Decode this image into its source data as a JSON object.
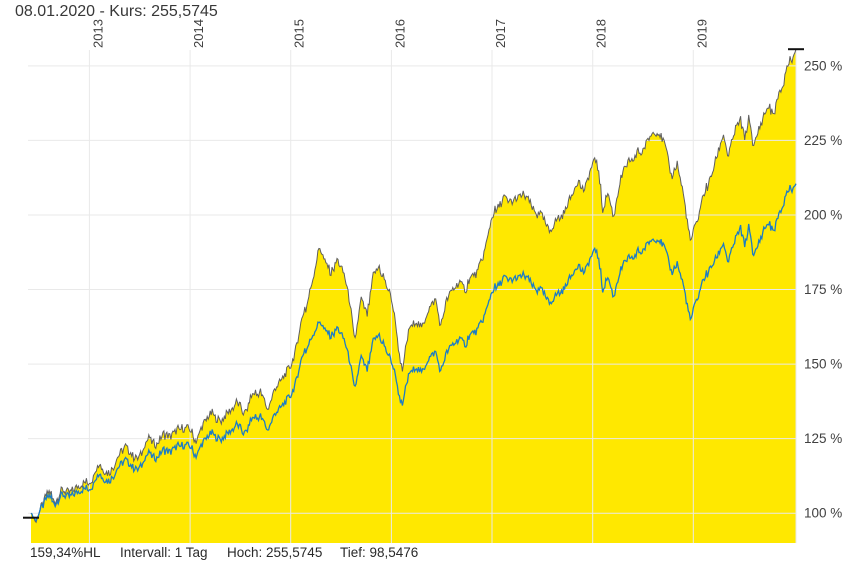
{
  "header": {
    "title": "08.01.2020  - Kurs: 255,5745"
  },
  "footer": {
    "change_label": "159,34%HL",
    "interval_label": "Intervall: 1 Tag",
    "high_label": "Hoch: 255,5745",
    "low_label": "Tief: 98,5476"
  },
  "colors": {
    "area_fill": "#ffe800",
    "area_outline": "#5f5f5f",
    "benchmark_line": "#1d7cc4",
    "grid": "#e9e9e9",
    "axis_text": "#404040",
    "tick_marker": "#111111"
  },
  "chart_data": {
    "type": "area",
    "title": "08.01.2020  - Kurs: 255,5745",
    "xlabel": "",
    "ylabel": "%",
    "x_tick_labels": [
      "2013",
      "2014",
      "2015",
      "2016",
      "2017",
      "2018",
      "2019"
    ],
    "x_tick_years": [
      2013,
      2014,
      2015,
      2016,
      2017,
      2018,
      2019
    ],
    "y_tick_labels": [
      "100 %",
      "125 %",
      "150 %",
      "175 %",
      "200 %",
      "225 %",
      "250 %"
    ],
    "y_tick_values": [
      100,
      125,
      150,
      175,
      200,
      225,
      250
    ],
    "xlim": [
      2012.39,
      2020.02
    ],
    "ylim": [
      90,
      258
    ],
    "grid": true,
    "legend": "none",
    "interval": "1 Tag",
    "last_price_pct": 255.5745,
    "high_pct": 255.5745,
    "low_pct": 98.5476,
    "start_marker": {
      "year": 2012.42,
      "value": 98.5
    },
    "end_marker": {
      "year": 2020.02,
      "value": 255.6
    },
    "noise": {
      "fund": 1.4,
      "benchmark": 1.2
    },
    "series": [
      {
        "name": "fund",
        "style": "area_with_outline",
        "points": [
          [
            2012.42,
            100
          ],
          [
            2012.47,
            98.5
          ],
          [
            2012.53,
            103
          ],
          [
            2012.6,
            106
          ],
          [
            2012.66,
            104.5
          ],
          [
            2012.73,
            108
          ],
          [
            2012.8,
            106.5
          ],
          [
            2012.88,
            109
          ],
          [
            2012.96,
            110.5
          ],
          [
            2013.04,
            113
          ],
          [
            2013.12,
            116
          ],
          [
            2013.2,
            114
          ],
          [
            2013.28,
            118
          ],
          [
            2013.36,
            122
          ],
          [
            2013.44,
            117.5
          ],
          [
            2013.52,
            121
          ],
          [
            2013.6,
            124.5
          ],
          [
            2013.68,
            123
          ],
          [
            2013.76,
            127
          ],
          [
            2013.84,
            125.5
          ],
          [
            2013.92,
            129.5
          ],
          [
            2014.0,
            128
          ],
          [
            2014.06,
            125.5
          ],
          [
            2014.14,
            130.5
          ],
          [
            2014.22,
            133
          ],
          [
            2014.3,
            131.5
          ],
          [
            2014.38,
            135
          ],
          [
            2014.46,
            137.5
          ],
          [
            2014.54,
            134.5
          ],
          [
            2014.62,
            139
          ],
          [
            2014.7,
            141.5
          ],
          [
            2014.77,
            134
          ],
          [
            2014.84,
            142
          ],
          [
            2014.92,
            146
          ],
          [
            2015.0,
            150
          ],
          [
            2015.07,
            158
          ],
          [
            2015.15,
            169
          ],
          [
            2015.22,
            180
          ],
          [
            2015.28,
            190
          ],
          [
            2015.34,
            184
          ],
          [
            2015.4,
            179
          ],
          [
            2015.46,
            186
          ],
          [
            2015.53,
            181
          ],
          [
            2015.59,
            172
          ],
          [
            2015.64,
            157
          ],
          [
            2015.7,
            171
          ],
          [
            2015.76,
            166
          ],
          [
            2015.82,
            180
          ],
          [
            2015.88,
            184
          ],
          [
            2015.94,
            176
          ],
          [
            2016.0,
            171
          ],
          [
            2016.06,
            159
          ],
          [
            2016.11,
            148
          ],
          [
            2016.18,
            161
          ],
          [
            2016.24,
            165
          ],
          [
            2016.3,
            162
          ],
          [
            2016.37,
            168
          ],
          [
            2016.44,
            171
          ],
          [
            2016.49,
            161.5
          ],
          [
            2016.55,
            171
          ],
          [
            2016.61,
            175
          ],
          [
            2016.68,
            178
          ],
          [
            2016.74,
            176
          ],
          [
            2016.8,
            178.5
          ],
          [
            2016.86,
            181
          ],
          [
            2016.92,
            188
          ],
          [
            2017.0,
            199
          ],
          [
            2017.06,
            204
          ],
          [
            2017.12,
            207
          ],
          [
            2017.2,
            203
          ],
          [
            2017.27,
            206
          ],
          [
            2017.34,
            207.5
          ],
          [
            2017.41,
            203
          ],
          [
            2017.49,
            199
          ],
          [
            2017.57,
            194
          ],
          [
            2017.64,
            198
          ],
          [
            2017.71,
            201
          ],
          [
            2017.78,
            205
          ],
          [
            2017.85,
            210
          ],
          [
            2017.92,
            208
          ],
          [
            2018.0,
            216
          ],
          [
            2018.04,
            217.5
          ],
          [
            2018.1,
            203
          ],
          [
            2018.15,
            209
          ],
          [
            2018.21,
            200.5
          ],
          [
            2018.28,
            212
          ],
          [
            2018.35,
            217
          ],
          [
            2018.42,
            221
          ],
          [
            2018.48,
            219
          ],
          [
            2018.55,
            224
          ],
          [
            2018.61,
            228
          ],
          [
            2018.66,
            226
          ],
          [
            2018.72,
            222
          ],
          [
            2018.78,
            212
          ],
          [
            2018.84,
            217
          ],
          [
            2018.9,
            207
          ],
          [
            2018.97,
            191
          ],
          [
            2019.03,
            197
          ],
          [
            2019.1,
            205
          ],
          [
            2019.17,
            212
          ],
          [
            2019.24,
            220
          ],
          [
            2019.3,
            227
          ],
          [
            2019.34,
            220
          ],
          [
            2019.42,
            230
          ],
          [
            2019.47,
            233
          ],
          [
            2019.51,
            226
          ],
          [
            2019.55,
            233
          ],
          [
            2019.6,
            221
          ],
          [
            2019.65,
            228
          ],
          [
            2019.7,
            232
          ],
          [
            2019.75,
            235
          ],
          [
            2019.8,
            233
          ],
          [
            2019.85,
            241
          ],
          [
            2019.9,
            245
          ],
          [
            2019.95,
            250
          ],
          [
            2020.02,
            255.6
          ]
        ]
      },
      {
        "name": "benchmark",
        "style": "line",
        "points": [
          [
            2012.42,
            100
          ],
          [
            2012.47,
            98.8
          ],
          [
            2012.53,
            102.4
          ],
          [
            2012.6,
            104.8
          ],
          [
            2012.66,
            103.6
          ],
          [
            2012.73,
            106.4
          ],
          [
            2012.8,
            105.2
          ],
          [
            2012.88,
            107.2
          ],
          [
            2012.96,
            108.4
          ],
          [
            2013.04,
            110.4
          ],
          [
            2013.12,
            112.8
          ],
          [
            2013.2,
            111.2
          ],
          [
            2013.28,
            114.4
          ],
          [
            2013.36,
            117.6
          ],
          [
            2013.44,
            114
          ],
          [
            2013.52,
            116.8
          ],
          [
            2013.6,
            119.6
          ],
          [
            2013.68,
            118.4
          ],
          [
            2013.76,
            121.6
          ],
          [
            2013.84,
            120.4
          ],
          [
            2013.92,
            123.6
          ],
          [
            2014.0,
            122.4
          ],
          [
            2014.06,
            120.4
          ],
          [
            2014.14,
            124.4
          ],
          [
            2014.22,
            126.4
          ],
          [
            2014.3,
            125.2
          ],
          [
            2014.38,
            128
          ],
          [
            2014.46,
            130
          ],
          [
            2014.54,
            127.6
          ],
          [
            2014.62,
            131.2
          ],
          [
            2014.7,
            133.2
          ],
          [
            2014.77,
            127.2
          ],
          [
            2014.84,
            133.6
          ],
          [
            2014.92,
            136.8
          ],
          [
            2015.0,
            140
          ],
          [
            2015.07,
            146.4
          ],
          [
            2015.15,
            155
          ],
          [
            2015.22,
            161
          ],
          [
            2015.28,
            165
          ],
          [
            2015.34,
            161
          ],
          [
            2015.4,
            158
          ],
          [
            2015.46,
            163
          ],
          [
            2015.53,
            159
          ],
          [
            2015.59,
            152
          ],
          [
            2015.64,
            141
          ],
          [
            2015.7,
            151.5
          ],
          [
            2015.76,
            147.5
          ],
          [
            2015.82,
            158
          ],
          [
            2015.88,
            161
          ],
          [
            2015.94,
            154
          ],
          [
            2016.0,
            150
          ],
          [
            2016.06,
            143
          ],
          [
            2016.11,
            136.5
          ],
          [
            2016.18,
            146
          ],
          [
            2016.24,
            149.5
          ],
          [
            2016.3,
            147
          ],
          [
            2016.37,
            151.5
          ],
          [
            2016.44,
            153.5
          ],
          [
            2016.49,
            146.5
          ],
          [
            2016.55,
            153.5
          ],
          [
            2016.61,
            156.5
          ],
          [
            2016.68,
            159
          ],
          [
            2016.74,
            157.5
          ],
          [
            2016.8,
            159.5
          ],
          [
            2016.86,
            161.5
          ],
          [
            2016.92,
            166.5
          ],
          [
            2017.0,
            174
          ],
          [
            2017.06,
            177.5
          ],
          [
            2017.12,
            180
          ],
          [
            2017.2,
            177
          ],
          [
            2017.27,
            179
          ],
          [
            2017.34,
            180.5
          ],
          [
            2017.41,
            177
          ],
          [
            2017.49,
            174
          ],
          [
            2017.57,
            170
          ],
          [
            2017.64,
            173
          ],
          [
            2017.71,
            175.5
          ],
          [
            2017.78,
            178.5
          ],
          [
            2017.85,
            182
          ],
          [
            2017.92,
            180.5
          ],
          [
            2018.0,
            186
          ],
          [
            2018.04,
            187.5
          ],
          [
            2018.1,
            176
          ],
          [
            2018.15,
            180.5
          ],
          [
            2018.21,
            173.5
          ],
          [
            2018.28,
            181.5
          ],
          [
            2018.35,
            185
          ],
          [
            2018.42,
            187.5
          ],
          [
            2018.48,
            186
          ],
          [
            2018.55,
            189.5
          ],
          [
            2018.61,
            192
          ],
          [
            2018.66,
            190.5
          ],
          [
            2018.72,
            187.5
          ],
          [
            2018.78,
            180
          ],
          [
            2018.84,
            183.5
          ],
          [
            2018.9,
            176.5
          ],
          [
            2018.97,
            164.5
          ],
          [
            2019.03,
            171
          ],
          [
            2019.1,
            177
          ],
          [
            2019.17,
            182
          ],
          [
            2019.24,
            186
          ],
          [
            2019.3,
            190.5
          ],
          [
            2019.34,
            184.5
          ],
          [
            2019.42,
            193
          ],
          [
            2019.47,
            196.5
          ],
          [
            2019.51,
            190
          ],
          [
            2019.55,
            196.5
          ],
          [
            2019.6,
            184.5
          ],
          [
            2019.65,
            190
          ],
          [
            2019.7,
            194
          ],
          [
            2019.75,
            196
          ],
          [
            2019.8,
            194
          ],
          [
            2019.85,
            200.5
          ],
          [
            2019.9,
            204.5
          ],
          [
            2019.95,
            207.5
          ],
          [
            2020.02,
            210.5
          ]
        ]
      }
    ]
  }
}
